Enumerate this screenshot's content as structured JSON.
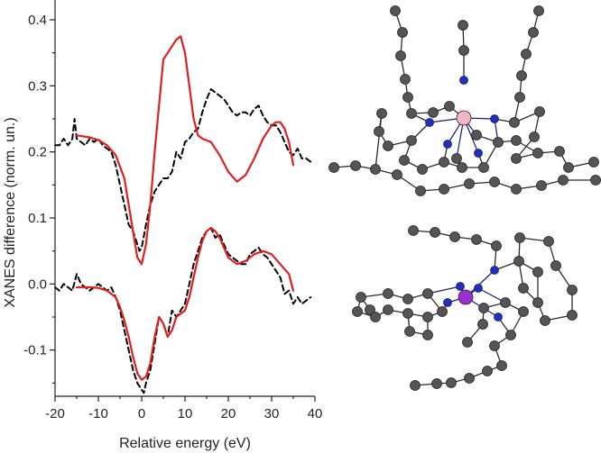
{
  "chart_data": {
    "type": "line",
    "xlabel": "Relative energy (eV)",
    "ylabel": "XANES difference (norm. un.)",
    "xlim": [
      -20,
      40
    ],
    "ylim": [
      -0.17,
      0.43
    ],
    "xticks": [
      -20,
      -10,
      0,
      10,
      20,
      30,
      40
    ],
    "yticks": [
      -0.1,
      0.0,
      0.1,
      0.2,
      0.3,
      0.4
    ],
    "xtick_labels": [
      "-20",
      "-10",
      "0",
      "10",
      "20",
      "30",
      "40"
    ],
    "ytick_labels": [
      "-0.1",
      "0.0",
      "0.1",
      "0.2",
      "0.3",
      "0.4"
    ],
    "grid": false,
    "legend": "none",
    "series": [
      {
        "style": "dashed",
        "color": "#000000",
        "x": [
          -20,
          -19,
          -18,
          -17,
          -16,
          -15.5,
          -15,
          -14,
          -13,
          -12,
          -11,
          -10,
          -9,
          -8,
          -7,
          -6,
          -5,
          -4,
          -3,
          -2,
          -1,
          -0.5,
          0,
          1,
          2,
          3,
          4,
          5,
          6,
          7,
          8,
          9,
          10,
          11,
          12,
          13,
          14,
          15,
          16,
          17,
          18,
          19,
          20,
          21,
          22,
          23,
          24,
          25,
          26,
          27,
          28,
          29,
          30,
          31,
          32,
          33,
          34,
          35,
          36,
          37,
          38,
          39
        ],
        "y": [
          0.21,
          0.21,
          0.22,
          0.21,
          0.22,
          0.25,
          0.22,
          0.215,
          0.21,
          0.22,
          0.215,
          0.22,
          0.21,
          0.205,
          0.2,
          0.18,
          0.15,
          0.12,
          0.09,
          0.08,
          0.06,
          0.05,
          0.055,
          0.09,
          0.12,
          0.14,
          0.15,
          0.16,
          0.16,
          0.17,
          0.2,
          0.19,
          0.215,
          0.22,
          0.23,
          0.235,
          0.26,
          0.28,
          0.295,
          0.29,
          0.285,
          0.28,
          0.27,
          0.26,
          0.255,
          0.26,
          0.26,
          0.255,
          0.265,
          0.27,
          0.255,
          0.245,
          0.24,
          0.24,
          0.23,
          0.215,
          0.2,
          0.195,
          0.205,
          0.19,
          0.19,
          0.185
        ]
      },
      {
        "style": "solid",
        "color": "#e0201f",
        "x": [
          -15,
          -12,
          -10,
          -8,
          -6,
          -4,
          -3,
          -2,
          -1,
          0,
          1,
          2,
          3,
          4,
          5,
          6,
          7,
          8,
          9,
          10,
          11,
          12,
          13,
          14,
          16,
          18,
          20,
          22,
          24,
          26,
          28,
          30,
          31,
          32,
          33,
          34,
          35
        ],
        "y": [
          0.225,
          0.222,
          0.218,
          0.21,
          0.195,
          0.16,
          0.12,
          0.08,
          0.04,
          0.03,
          0.06,
          0.12,
          0.2,
          0.27,
          0.34,
          0.35,
          0.36,
          0.37,
          0.375,
          0.35,
          0.3,
          0.25,
          0.225,
          0.22,
          0.215,
          0.195,
          0.17,
          0.155,
          0.165,
          0.19,
          0.22,
          0.24,
          0.245,
          0.245,
          0.235,
          0.215,
          0.18
        ]
      },
      {
        "style": "dashed",
        "color": "#000000",
        "x": [
          -20,
          -19,
          -18,
          -17,
          -16,
          -15,
          -14,
          -13,
          -12,
          -11,
          -10,
          -9,
          -8,
          -7,
          -6,
          -5,
          -4,
          -3,
          -2,
          -1,
          0,
          0.5,
          1,
          2,
          3,
          4,
          5,
          6,
          7,
          8,
          9,
          10,
          11,
          12,
          13,
          14,
          15,
          16,
          17,
          18,
          19,
          20,
          21,
          22,
          23,
          24,
          25,
          26,
          27,
          28,
          29,
          30,
          31,
          32,
          33,
          34,
          35,
          36,
          37,
          38,
          39
        ],
        "y": [
          -0.005,
          -0.01,
          0.0,
          -0.005,
          -0.01,
          0.015,
          0.0,
          -0.005,
          -0.01,
          -0.005,
          0.0,
          -0.005,
          -0.01,
          -0.005,
          -0.02,
          -0.04,
          -0.07,
          -0.1,
          -0.13,
          -0.15,
          -0.16,
          -0.165,
          -0.15,
          -0.13,
          -0.09,
          -0.05,
          -0.06,
          -0.08,
          -0.04,
          -0.05,
          -0.04,
          -0.03,
          0.0,
          0.03,
          0.05,
          0.07,
          0.08,
          0.085,
          0.07,
          0.075,
          0.06,
          0.045,
          0.04,
          0.035,
          0.03,
          0.03,
          0.045,
          0.05,
          0.055,
          0.045,
          0.04,
          0.03,
          0.02,
          0.01,
          -0.015,
          -0.01,
          -0.03,
          -0.02,
          -0.03,
          -0.025,
          -0.02
        ]
      },
      {
        "style": "solid",
        "color": "#e0201f",
        "x": [
          -15,
          -12,
          -10,
          -8,
          -6,
          -5,
          -4,
          -3,
          -2,
          -1,
          0,
          1,
          2,
          3,
          4,
          5,
          6,
          7,
          8,
          9,
          10,
          11,
          12,
          13,
          14,
          15,
          16,
          17,
          18,
          20,
          22,
          24,
          26,
          28,
          30,
          32,
          34,
          35
        ],
        "y": [
          -0.005,
          -0.005,
          -0.006,
          -0.01,
          -0.02,
          -0.035,
          -0.055,
          -0.08,
          -0.11,
          -0.135,
          -0.145,
          -0.14,
          -0.12,
          -0.08,
          -0.05,
          -0.06,
          -0.08,
          -0.07,
          -0.05,
          -0.045,
          -0.04,
          -0.02,
          0.01,
          0.04,
          0.065,
          0.08,
          0.085,
          0.08,
          0.07,
          0.04,
          0.03,
          0.035,
          0.045,
          0.05,
          0.045,
          0.03,
          0.015,
          -0.01
        ]
      }
    ]
  },
  "molecules": {
    "top": {
      "central_atom_color": "#f2b6c6",
      "n_atom_color": "#1e2fc9",
      "c_atom_color": "#555555"
    },
    "bottom": {
      "central_atom_color": "#9b2fd0",
      "n_atom_color": "#1e2fc9",
      "c_atom_color": "#555555"
    }
  }
}
